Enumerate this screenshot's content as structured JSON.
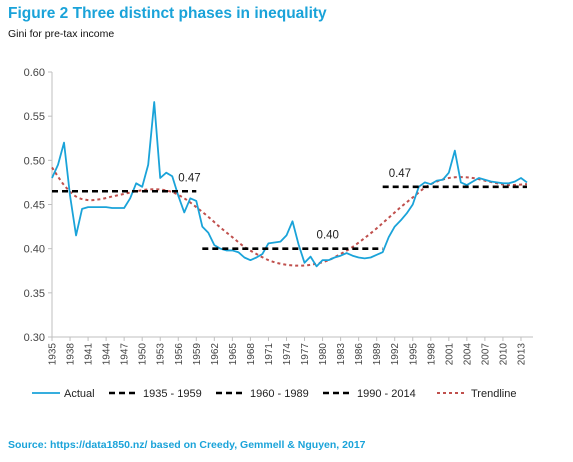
{
  "title": "Figure 2 Three distinct phases in inequality",
  "subtitle": "Gini for pre-tax income",
  "source": "Source: https://data1850.nz/ based on Creedy, Gemmell & Nguyen, 2017",
  "colors": {
    "title": "#1aa3d9",
    "actual": "#1aa3d9",
    "phase": "#000000",
    "trend": "#c0504d",
    "axis": "#bfbfbf"
  },
  "chart_data": {
    "type": "line",
    "title": "Figure 2 Three distinct phases in inequality",
    "ylabel": "",
    "xlabel": "",
    "ylim": [
      0.3,
      0.6
    ],
    "xlim": [
      1935,
      2015
    ],
    "y_ticks": [
      "0.60",
      "0.55",
      "0.50",
      "0.45",
      "0.40",
      "0.35",
      "0.30"
    ],
    "x_ticks": [
      "1935",
      "1938",
      "1941",
      "1944",
      "1947",
      "1950",
      "1953",
      "1956",
      "1959",
      "1962",
      "1965",
      "1968",
      "1971",
      "1974",
      "1977",
      "1980",
      "1983",
      "1986",
      "1989",
      "1992",
      "1995",
      "1998",
      "2001",
      "2004",
      "2007",
      "2010",
      "2013"
    ],
    "grid": false,
    "legend_position": "bottom",
    "series": [
      {
        "name": "Actual",
        "style": "solid",
        "x": [
          1935,
          1936,
          1937,
          1938,
          1939,
          1940,
          1941,
          1942,
          1943,
          1944,
          1945,
          1946,
          1947,
          1948,
          1949,
          1950,
          1951,
          1952,
          1953,
          1954,
          1955,
          1956,
          1957,
          1958,
          1959,
          1960,
          1961,
          1962,
          1963,
          1964,
          1965,
          1966,
          1967,
          1968,
          1969,
          1970,
          1971,
          1972,
          1973,
          1974,
          1975,
          1976,
          1977,
          1978,
          1979,
          1980,
          1981,
          1982,
          1983,
          1984,
          1985,
          1986,
          1987,
          1988,
          1989,
          1990,
          1991,
          1992,
          1993,
          1994,
          1995,
          1996,
          1997,
          1998,
          1999,
          2000,
          2001,
          2002,
          2003,
          2004,
          2005,
          2006,
          2007,
          2008,
          2009,
          2010,
          2011,
          2012,
          2013,
          2014
        ],
        "values": [
          0.48,
          0.495,
          0.52,
          0.46,
          0.415,
          0.445,
          0.447,
          0.447,
          0.447,
          0.447,
          0.446,
          0.446,
          0.446,
          0.457,
          0.474,
          0.47,
          0.495,
          0.566,
          0.48,
          0.486,
          0.482,
          0.46,
          0.441,
          0.457,
          0.454,
          0.425,
          0.418,
          0.404,
          0.4,
          0.398,
          0.398,
          0.396,
          0.39,
          0.387,
          0.39,
          0.394,
          0.406,
          0.407,
          0.408,
          0.415,
          0.431,
          0.405,
          0.384,
          0.391,
          0.38,
          0.387,
          0.387,
          0.39,
          0.392,
          0.395,
          0.392,
          0.39,
          0.389,
          0.39,
          0.393,
          0.396,
          0.413,
          0.425,
          0.432,
          0.44,
          0.45,
          0.47,
          0.475,
          0.473,
          0.477,
          0.478,
          0.486,
          0.511,
          0.475,
          0.472,
          0.476,
          0.48,
          0.478,
          0.476,
          0.475,
          0.474,
          0.474,
          0.476,
          0.48,
          0.475
        ]
      },
      {
        "name": "1935 - 1959",
        "style": "dashed",
        "x": [
          1935,
          1959
        ],
        "values": [
          0.465,
          0.465
        ],
        "label": "0.47",
        "label_x": 1956
      },
      {
        "name": "1960 - 1989",
        "style": "dashed",
        "x": [
          1960,
          1990
        ],
        "values": [
          0.4,
          0.4
        ],
        "label": "0.40",
        "label_x": 1979
      },
      {
        "name": "1990 - 2014",
        "style": "dashed",
        "x": [
          1990,
          2014
        ],
        "values": [
          0.47,
          0.47
        ],
        "label": "0.47",
        "label_x": 1991
      },
      {
        "name": "Trendline",
        "style": "dotted",
        "x": [
          1935,
          1937,
          1939,
          1941,
          1943,
          1945,
          1947,
          1949,
          1951,
          1953,
          1955,
          1957,
          1959,
          1961,
          1963,
          1965,
          1967,
          1969,
          1971,
          1973,
          1975,
          1977,
          1979,
          1981,
          1983,
          1985,
          1987,
          1989,
          1991,
          1993,
          1995,
          1997,
          1999,
          2001,
          2003,
          2005,
          2007,
          2009,
          2011,
          2014
        ],
        "values": [
          0.492,
          0.472,
          0.459,
          0.455,
          0.456,
          0.459,
          0.462,
          0.465,
          0.467,
          0.467,
          0.464,
          0.457,
          0.447,
          0.436,
          0.424,
          0.413,
          0.402,
          0.394,
          0.387,
          0.383,
          0.381,
          0.381,
          0.383,
          0.387,
          0.394,
          0.402,
          0.412,
          0.423,
          0.435,
          0.447,
          0.458,
          0.469,
          0.476,
          0.48,
          0.481,
          0.48,
          0.477,
          0.474,
          0.472,
          0.473
        ]
      }
    ]
  }
}
